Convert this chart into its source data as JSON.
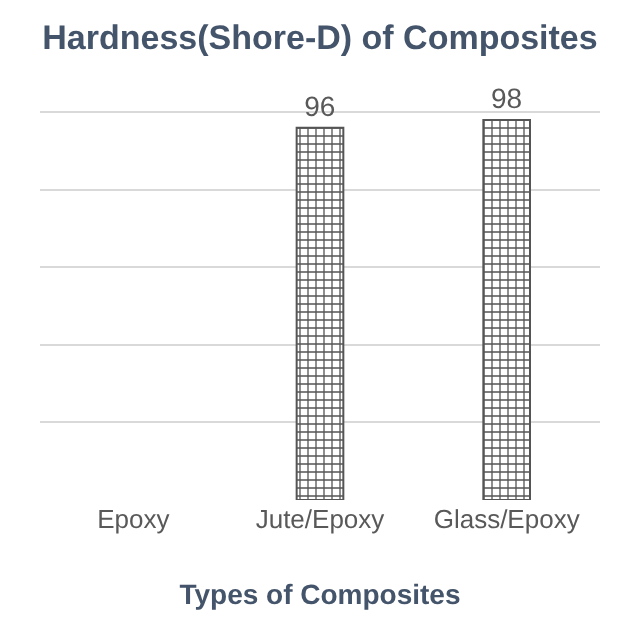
{
  "chart_data": {
    "type": "bar",
    "title": "Hardness(Shore-D) of Composites",
    "xlabel": "Types of Composites",
    "categories": [
      "Epoxy",
      "Jute/Epoxy",
      "Glass/Epoxy"
    ],
    "values": [
      null,
      96,
      98
    ],
    "color": "#555555",
    "grid": "y",
    "tick_labels": "x",
    "data_labels": true
  }
}
